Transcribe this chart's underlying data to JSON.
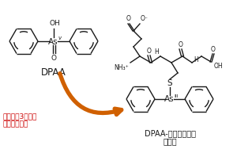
{
  "bg_color": "#ffffff",
  "lc": "#1a1a1a",
  "arrow_color": "#d06000",
  "red_color": "#cc0000",
  "lw": 1.0,
  "r_benz": 18,
  "label_dpaa": "DPAA",
  "label_conj1": "DPAA-グルタチオン",
  "label_conj2": "抱合体",
  "arrow_text1": "生体内で3価ヒ素",
  "arrow_text2": "化合物へ変化"
}
